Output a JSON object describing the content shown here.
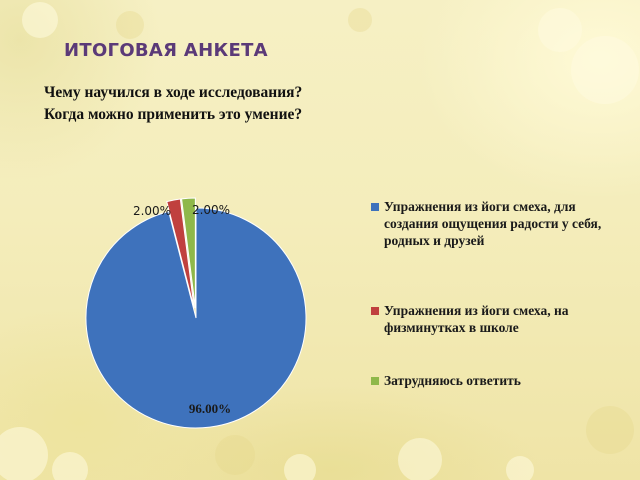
{
  "slide": {
    "title": "ИТОГОВАЯ АНКЕТА",
    "question_line_1": "Чему научился в ходе исследования?",
    "question_line_2": "Когда можно применить это умение?"
  },
  "chart_data": {
    "type": "pie",
    "labels": [
      "Упражнения из йоги смеха, для создания ощущения радости у себя, родных и друзей",
      "Упражнения из йоги смеха, на физминутках в школе",
      "Затрудняюсь ответить"
    ],
    "values": [
      96.0,
      2.0,
      2.0
    ],
    "data_labels": [
      "96.00%",
      "2.00%",
      "2.00%"
    ],
    "colors": [
      "#3e72bc",
      "#c0403e",
      "#8fb84a"
    ],
    "exploded": true,
    "legend_position": "right",
    "title": "",
    "label_colors": [
      "#1a1a1a",
      "#1a1a1a",
      "#1a1a1a"
    ]
  }
}
